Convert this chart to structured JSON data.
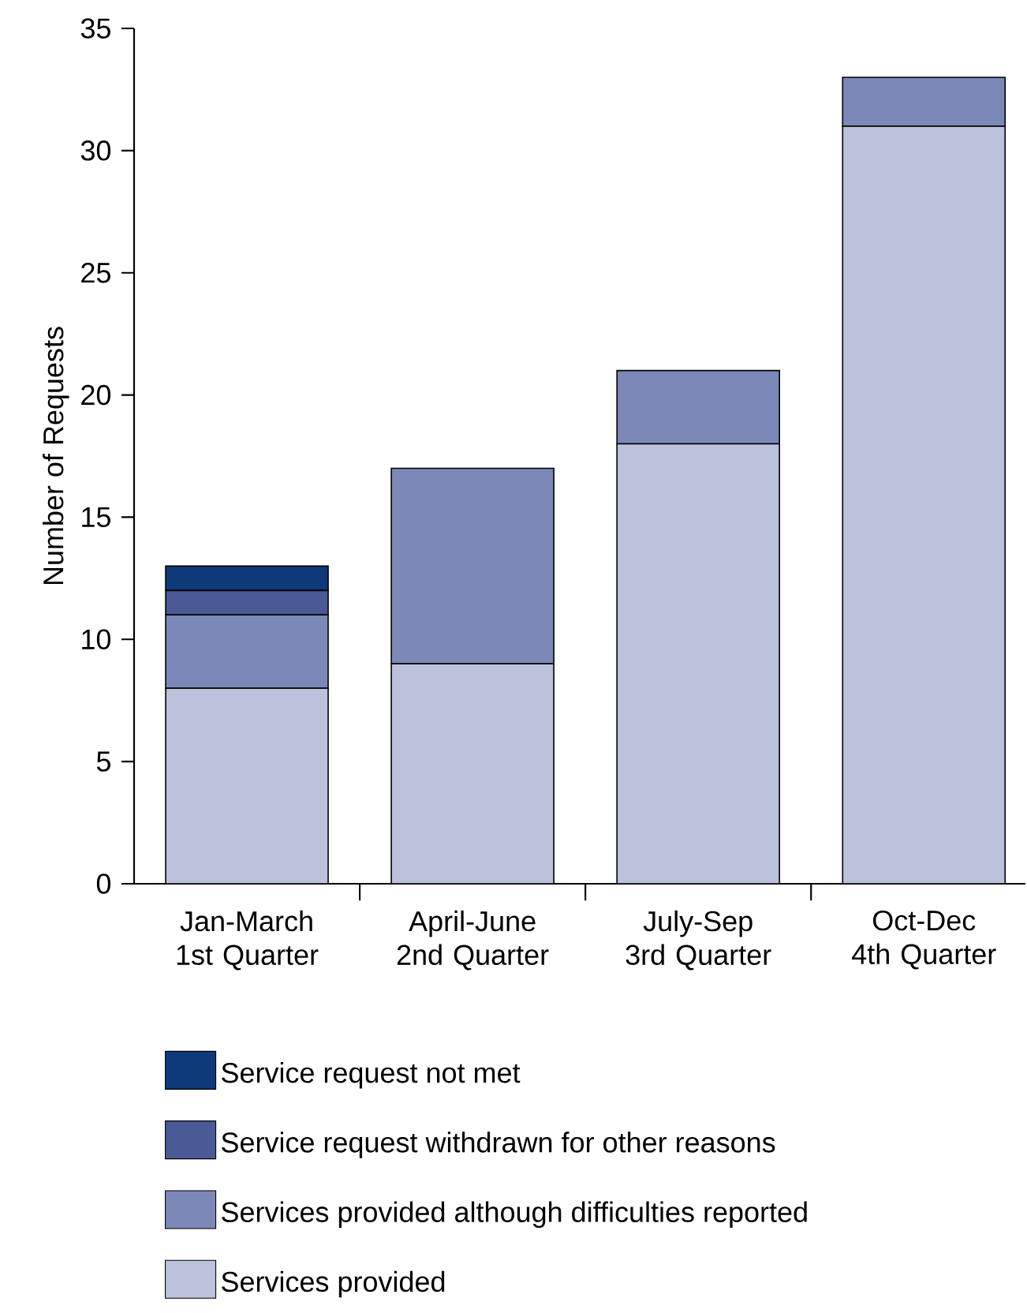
{
  "chart_data": {
    "type": "bar",
    "stacked": true,
    "ylabel": "Number of Requests",
    "categories": [
      "Jan-March 1st Quarter",
      "April-June 2nd Quarter",
      "July-Sep 3rd Quarter",
      "Oct-Dec 4th Quarter"
    ],
    "series": [
      {
        "name": "Services provided",
        "color": "#bcc1dc",
        "values": [
          8,
          9,
          18,
          31
        ]
      },
      {
        "name": "Services provided although difficulties reported",
        "color": "#7b88b8",
        "values": [
          3,
          8,
          3,
          2
        ]
      },
      {
        "name": "Service request withdrawn for other reasons",
        "color": "#4a5a96",
        "values": [
          1,
          0,
          0,
          0
        ]
      },
      {
        "name": "Service request not met",
        "color": "#0f3a7a",
        "values": [
          1,
          0,
          0,
          0
        ]
      }
    ],
    "ylim": [
      0,
      35
    ],
    "yticks": [
      0,
      5,
      10,
      15,
      20,
      25,
      30,
      35
    ],
    "legend": "bottom",
    "grid": false
  }
}
